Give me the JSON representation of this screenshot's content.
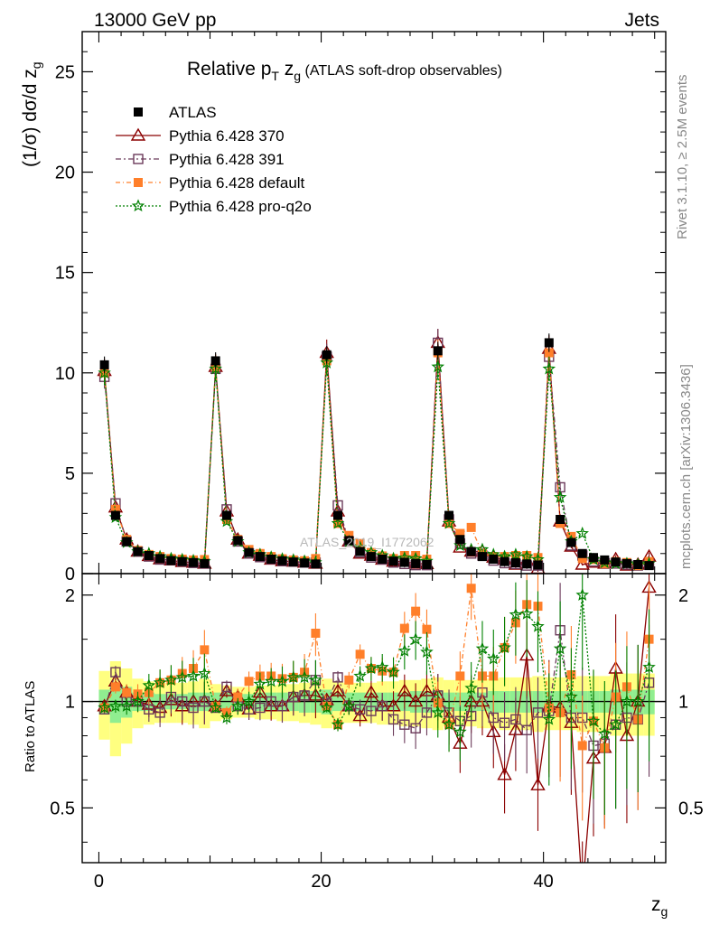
{
  "header": {
    "left": "13000 GeV pp",
    "right": "Jets"
  },
  "side": {
    "rivet": "Rivet 3.1.10, ≥ 2.5M events",
    "mcplots": "mcplots.cern.ch [arXiv:1306.3436]"
  },
  "watermark": "ATLAS_2019_I1772062",
  "chart_data": [
    {
      "type": "line",
      "title": "Relative p_T z_g (ATLAS soft-drop observables)",
      "xlabel": "z_g",
      "ylabel": "(1/σ) dσ/d z_g",
      "xlim": [
        -1.5,
        51
      ],
      "ylim": [
        0,
        27
      ],
      "x_ticks": [
        0,
        20,
        40
      ],
      "y_ticks": [
        0,
        5,
        10,
        15,
        20,
        25
      ],
      "legend_position": "top-left",
      "x": [
        0.5,
        1.5,
        2.5,
        3.5,
        4.5,
        5.5,
        6.5,
        7.5,
        8.5,
        9.5,
        10.5,
        11.5,
        12.5,
        13.5,
        14.5,
        15.5,
        16.5,
        17.5,
        18.5,
        19.5,
        20.5,
        21.5,
        22.5,
        23.5,
        24.5,
        25.5,
        26.5,
        27.5,
        28.5,
        29.5,
        30.5,
        31.5,
        32.5,
        33.5,
        34.5,
        35.5,
        36.5,
        37.5,
        38.5,
        39.5,
        40.5,
        41.5,
        42.5,
        43.5,
        44.5,
        45.5,
        46.5,
        47.5,
        48.5,
        49.5
      ],
      "series": [
        {
          "name": "ATLAS",
          "color": "#000000",
          "marker": "square-filled",
          "values": [
            10.4,
            2.9,
            1.6,
            1.1,
            0.9,
            0.75,
            0.65,
            0.6,
            0.55,
            0.5,
            10.6,
            2.9,
            1.65,
            1.05,
            0.85,
            0.72,
            0.64,
            0.58,
            0.53,
            0.48,
            10.9,
            2.9,
            1.65,
            1.1,
            0.85,
            0.72,
            0.62,
            0.56,
            0.5,
            0.45,
            11.1,
            2.9,
            1.7,
            1.1,
            0.85,
            0.72,
            0.6,
            0.54,
            0.48,
            0.43,
            11.5,
            2.7,
            1.55,
            1.0,
            0.8,
            0.68,
            0.58,
            0.5,
            0.45,
            0.4
          ]
        },
        {
          "name": "Pythia 6.428 370",
          "color": "#8b0000",
          "marker": "triangle-open",
          "values": [
            10.1,
            3.3,
            1.7,
            1.1,
            0.88,
            0.72,
            0.66,
            0.58,
            0.55,
            0.5,
            10.3,
            3.1,
            1.7,
            1.0,
            0.9,
            0.7,
            0.62,
            0.6,
            0.55,
            0.5,
            11.0,
            3.1,
            1.6,
            1.0,
            0.9,
            0.7,
            0.6,
            0.6,
            0.5,
            0.48,
            11.5,
            2.6,
            1.3,
            1.1,
            1.1,
            0.8,
            0.7,
            0.45,
            0.65,
            0.25,
            11.2,
            2.6,
            1.35,
            0.45,
            0.55,
            0.5,
            0.72,
            0.4,
            0.45,
            0.85
          ]
        },
        {
          "name": "Pythia 6.428 391",
          "color": "#6b3a5a",
          "marker": "square-open",
          "values": [
            9.8,
            3.5,
            1.6,
            1.1,
            0.85,
            0.7,
            0.67,
            0.6,
            0.53,
            0.5,
            10.2,
            3.2,
            1.6,
            1.0,
            0.82,
            0.72,
            0.62,
            0.6,
            0.55,
            0.55,
            10.8,
            3.4,
            1.6,
            1.05,
            0.8,
            0.7,
            0.55,
            0.48,
            0.42,
            0.42,
            11.5,
            2.7,
            1.5,
            1.0,
            0.9,
            0.65,
            0.52,
            0.48,
            0.4,
            0.4,
            10.8,
            4.3,
            1.4,
            0.9,
            0.6,
            0.52,
            0.5,
            0.45,
            0.4,
            0.45
          ]
        },
        {
          "name": "Pythia 6.428 default",
          "color": "#ff7f2a",
          "marker": "square-filled",
          "values": [
            10.0,
            3.2,
            1.7,
            1.15,
            0.95,
            0.85,
            0.75,
            0.72,
            0.68,
            0.7,
            10.3,
            2.7,
            1.7,
            1.2,
            1.0,
            0.85,
            0.74,
            0.68,
            0.64,
            0.75,
            10.6,
            2.5,
            1.9,
            1.5,
            1.05,
            0.88,
            0.75,
            0.9,
            0.9,
            0.72,
            11.0,
            2.5,
            2.0,
            2.3,
            1.0,
            0.85,
            0.85,
            0.9,
            0.9,
            0.8,
            11.0,
            2.5,
            1.85,
            0.75,
            0.7,
            0.5,
            0.6,
            0.55,
            0.4,
            0.6
          ]
        },
        {
          "name": "Pythia 6.428 pro-q2o",
          "color": "#008000",
          "marker": "star-open",
          "values": [
            10.0,
            2.8,
            1.55,
            1.1,
            1.0,
            0.85,
            0.75,
            0.7,
            0.65,
            0.6,
            10.2,
            2.6,
            1.6,
            1.05,
            0.95,
            0.82,
            0.73,
            0.68,
            0.62,
            0.55,
            10.5,
            2.5,
            1.6,
            1.3,
            1.05,
            0.9,
            0.75,
            0.78,
            0.75,
            0.62,
            10.3,
            2.5,
            1.4,
            1.2,
            1.2,
            0.95,
            0.85,
            0.95,
            0.85,
            0.7,
            10.2,
            3.8,
            1.6,
            2.0,
            0.7,
            0.55,
            0.5,
            0.5,
            0.45,
            0.5
          ]
        }
      ]
    },
    {
      "type": "line",
      "title": "",
      "xlabel": "z_g",
      "ylabel": "Ratio to ATLAS",
      "xlim": [
        -1.5,
        51
      ],
      "ylim": [
        0.35,
        2.3
      ],
      "y_ticks": [
        0.5,
        1,
        2
      ],
      "x": [
        0.5,
        1.5,
        2.5,
        3.5,
        4.5,
        5.5,
        6.5,
        7.5,
        8.5,
        9.5,
        10.5,
        11.5,
        12.5,
        13.5,
        14.5,
        15.5,
        16.5,
        17.5,
        18.5,
        19.5,
        20.5,
        21.5,
        22.5,
        23.5,
        24.5,
        25.5,
        26.5,
        27.5,
        28.5,
        29.5,
        30.5,
        31.5,
        32.5,
        33.5,
        34.5,
        35.5,
        36.5,
        37.5,
        38.5,
        39.5,
        40.5,
        41.5,
        42.5,
        43.5,
        44.5,
        45.5,
        46.5,
        47.5,
        48.5,
        49.5
      ],
      "band_inner": [
        0.08,
        0.13,
        0.1,
        0.06,
        0.06,
        0.05,
        0.05,
        0.05,
        0.06,
        0.06,
        0.06,
        0.06,
        0.05,
        0.05,
        0.06,
        0.06,
        0.06,
        0.06,
        0.07,
        0.07,
        0.08,
        0.06,
        0.06,
        0.06,
        0.06,
        0.06,
        0.06,
        0.06,
        0.07,
        0.07,
        0.07,
        0.06,
        0.06,
        0.06,
        0.06,
        0.07,
        0.07,
        0.07,
        0.07,
        0.07,
        0.07,
        0.07,
        0.07,
        0.07,
        0.07,
        0.07,
        0.08,
        0.08,
        0.08,
        0.08
      ],
      "band_outer": [
        0.22,
        0.3,
        0.24,
        0.16,
        0.14,
        0.13,
        0.13,
        0.13,
        0.14,
        0.16,
        0.12,
        0.11,
        0.1,
        0.1,
        0.11,
        0.11,
        0.12,
        0.12,
        0.13,
        0.14,
        0.16,
        0.14,
        0.13,
        0.13,
        0.13,
        0.14,
        0.14,
        0.15,
        0.15,
        0.16,
        0.17,
        0.15,
        0.15,
        0.15,
        0.16,
        0.16,
        0.17,
        0.17,
        0.17,
        0.18,
        0.17,
        0.17,
        0.17,
        0.18,
        0.18,
        0.18,
        0.2,
        0.2,
        0.2,
        0.2
      ],
      "series": [
        {
          "name": "Pythia 6.428 370",
          "color": "#8b0000",
          "marker": "triangle-open",
          "values": [
            0.97,
            1.14,
            1.06,
            1.0,
            0.98,
            0.96,
            1.01,
            0.97,
            1.0,
            1.0,
            0.97,
            1.07,
            1.03,
            0.95,
            1.06,
            0.97,
            0.97,
            1.03,
            1.04,
            1.04,
            1.01,
            1.07,
            0.97,
            0.91,
            1.06,
            0.97,
            0.97,
            1.07,
            1.0,
            1.07,
            1.04,
            0.9,
            0.76,
            1.0,
            1.0,
            0.82,
            0.62,
            0.83,
            1.35,
            0.58,
            0.97,
            0.96,
            0.87,
            0.29,
            0.69,
            0.74,
            1.24,
            0.8,
            1.0,
            2.1
          ]
        },
        {
          "name": "Pythia 6.428 391",
          "color": "#6b3a5a",
          "marker": "square-open",
          "values": [
            0.95,
            1.21,
            1.0,
            1.0,
            0.95,
            0.93,
            1.03,
            1.0,
            0.96,
            1.0,
            0.96,
            1.1,
            0.97,
            0.95,
            0.96,
            1.0,
            0.97,
            1.03,
            1.04,
            1.15,
            0.99,
            1.17,
            0.97,
            0.95,
            0.94,
            0.97,
            0.89,
            0.86,
            0.84,
            0.93,
            1.04,
            0.93,
            0.88,
            0.91,
            1.06,
            0.9,
            0.87,
            0.89,
            0.83,
            0.93,
            0.94,
            1.59,
            0.9,
            0.9,
            0.75,
            0.76,
            0.86,
            0.9,
            0.89,
            1.13
          ]
        },
        {
          "name": "Pythia 6.428 default",
          "color": "#ff7f2a",
          "marker": "square-filled",
          "values": [
            0.96,
            1.1,
            1.06,
            1.05,
            1.06,
            1.13,
            1.15,
            1.2,
            1.24,
            1.4,
            0.97,
            0.93,
            1.03,
            1.14,
            1.18,
            1.18,
            1.16,
            1.17,
            1.21,
            1.56,
            0.97,
            0.86,
            1.15,
            1.36,
            1.24,
            1.22,
            1.21,
            1.61,
            1.8,
            1.6,
            0.99,
            0.86,
            1.18,
            2.09,
            1.18,
            1.18,
            1.42,
            1.67,
            1.88,
            1.86,
            0.96,
            0.93,
            1.19,
            0.75,
            0.88,
            0.74,
            1.03,
            1.1,
            0.89,
            1.5
          ]
        },
        {
          "name": "Pythia 6.428 pro-q2o",
          "color": "#008000",
          "marker": "star-open",
          "values": [
            0.96,
            0.97,
            0.97,
            1.0,
            1.11,
            1.13,
            1.15,
            1.17,
            1.18,
            1.2,
            0.96,
            0.9,
            0.97,
            1.0,
            1.12,
            1.14,
            1.14,
            1.17,
            1.17,
            1.15,
            0.96,
            0.86,
            0.97,
            1.18,
            1.24,
            1.25,
            1.21,
            1.39,
            1.5,
            1.38,
            0.93,
            0.86,
            0.82,
            1.09,
            1.41,
            1.32,
            1.42,
            1.76,
            1.77,
            1.63,
            0.89,
            1.41,
            1.03,
            2.0,
            0.88,
            0.81,
            0.86,
            1.0,
            1.0,
            1.25
          ]
        }
      ]
    }
  ]
}
